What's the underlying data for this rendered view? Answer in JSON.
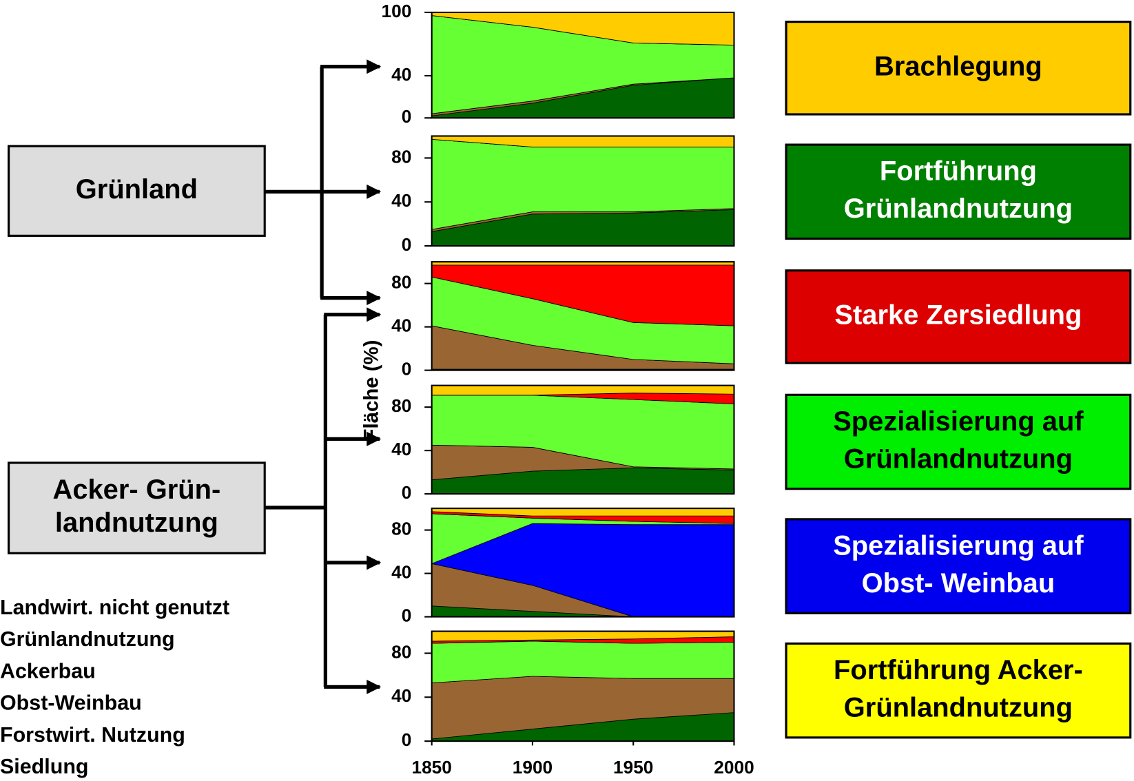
{
  "y_axis_label": "Fläche (%)",
  "sources": [
    {
      "lines": [
        "Grünland"
      ]
    },
    {
      "lines": [
        "Acker- Grün-",
        "landnutzung"
      ]
    }
  ],
  "scenarios": [
    {
      "lines": [
        "Brachlegung"
      ],
      "color": "#ffcc00",
      "text_color": "#000000"
    },
    {
      "lines": [
        "Fortführung",
        "Grünlandnutzung"
      ],
      "color": "#008000",
      "text_color": "#ffffff"
    },
    {
      "lines": [
        "Starke Zersiedlung"
      ],
      "color": "#dd0000",
      "text_color": "#ffffff"
    },
    {
      "lines": [
        "Spezialisierung auf",
        "Grünlandnutzung"
      ],
      "color": "#00ee00",
      "text_color": "#000000"
    },
    {
      "lines": [
        "Spezialisierung auf",
        "Obst- Weinbau"
      ],
      "color": "#0000ee",
      "text_color": "#ffffff"
    },
    {
      "lines": [
        "Fortführung Acker-",
        "Grünlandnutzung"
      ],
      "color": "#ffff00",
      "text_color": "#000000"
    }
  ],
  "chart_data": [
    {
      "type": "area",
      "stacked": true,
      "x": [
        1850,
        1900,
        1950,
        2000
      ],
      "xlim": [
        1850,
        2000
      ],
      "ylim": [
        0,
        100
      ],
      "yticks": [
        0,
        40,
        100
      ],
      "series": [
        {
          "name": "Forstwirt. Nutzung",
          "color": "#006400",
          "values": [
            2,
            14,
            31,
            38
          ]
        },
        {
          "name": "Ackerbau",
          "color": "#996633",
          "values": [
            2,
            2,
            1,
            0
          ]
        },
        {
          "name": "Obst-Weinbau",
          "color": "#0000ff",
          "values": [
            0,
            0,
            0,
            0
          ]
        },
        {
          "name": "Grünlandnutzung",
          "color": "#66ff33",
          "values": [
            93,
            70,
            39,
            31
          ]
        },
        {
          "name": "Siedlung",
          "color": "#ff0000",
          "values": [
            0,
            0,
            0,
            0
          ]
        },
        {
          "name": "Landwirt. nicht genutzt",
          "color": "#ffcc00",
          "values": [
            3,
            14,
            29,
            31
          ]
        }
      ]
    },
    {
      "type": "area",
      "stacked": true,
      "x": [
        1850,
        1900,
        1950,
        2000
      ],
      "xlim": [
        1850,
        2000
      ],
      "ylim": [
        0,
        100
      ],
      "yticks": [
        0,
        40,
        80
      ],
      "series": [
        {
          "name": "Forstwirt. Nutzung",
          "color": "#006400",
          "values": [
            13,
            29,
            30,
            33
          ]
        },
        {
          "name": "Ackerbau",
          "color": "#996633",
          "values": [
            2,
            2,
            1,
            1
          ]
        },
        {
          "name": "Obst-Weinbau",
          "color": "#0000ff",
          "values": [
            0,
            0,
            0,
            0
          ]
        },
        {
          "name": "Grünlandnutzung",
          "color": "#66ff33",
          "values": [
            82,
            59,
            59,
            56
          ]
        },
        {
          "name": "Siedlung",
          "color": "#ff0000",
          "values": [
            0,
            0,
            0,
            0
          ]
        },
        {
          "name": "Landwirt. nicht genutzt",
          "color": "#ffcc00",
          "values": [
            3,
            10,
            10,
            10
          ]
        }
      ]
    },
    {
      "type": "area",
      "stacked": true,
      "x": [
        1850,
        1900,
        1950,
        2000
      ],
      "xlim": [
        1850,
        2000
      ],
      "ylim": [
        0,
        100
      ],
      "yticks": [
        0,
        40,
        80
      ],
      "series": [
        {
          "name": "Forstwirt. Nutzung",
          "color": "#006400",
          "values": [
            1,
            1,
            1,
            1
          ]
        },
        {
          "name": "Ackerbau",
          "color": "#996633",
          "values": [
            40,
            22,
            9,
            5
          ]
        },
        {
          "name": "Obst-Weinbau",
          "color": "#0000ff",
          "values": [
            0,
            0,
            0,
            0
          ]
        },
        {
          "name": "Grünlandnutzung",
          "color": "#66ff33",
          "values": [
            45,
            43,
            34,
            35
          ]
        },
        {
          "name": "Siedlung",
          "color": "#ff0000",
          "values": [
            11,
            31,
            53,
            56
          ]
        },
        {
          "name": "Landwirt. nicht genutzt",
          "color": "#ffcc00",
          "values": [
            3,
            3,
            3,
            3
          ]
        }
      ]
    },
    {
      "type": "area",
      "stacked": true,
      "x": [
        1850,
        1900,
        1950,
        2000
      ],
      "xlim": [
        1850,
        2000
      ],
      "ylim": [
        0,
        100
      ],
      "yticks": [
        0,
        40,
        80
      ],
      "series": [
        {
          "name": "Forstwirt. Nutzung",
          "color": "#006400",
          "values": [
            13,
            21,
            24,
            22
          ]
        },
        {
          "name": "Ackerbau",
          "color": "#996633",
          "values": [
            32,
            22,
            1,
            1
          ]
        },
        {
          "name": "Obst-Weinbau",
          "color": "#0000ff",
          "values": [
            0,
            0,
            0,
            0
          ]
        },
        {
          "name": "Grünlandnutzung",
          "color": "#66ff33",
          "values": [
            46,
            48,
            62,
            60
          ]
        },
        {
          "name": "Siedlung",
          "color": "#ff0000",
          "values": [
            0,
            0,
            6,
            9
          ]
        },
        {
          "name": "Landwirt. nicht genutzt",
          "color": "#ffcc00",
          "values": [
            9,
            9,
            7,
            8
          ]
        }
      ]
    },
    {
      "type": "area",
      "stacked": true,
      "x": [
        1850,
        1900,
        1950,
        2000
      ],
      "xlim": [
        1850,
        2000
      ],
      "ylim": [
        0,
        100
      ],
      "yticks": [
        0,
        40,
        80
      ],
      "series": [
        {
          "name": "Forstwirt. Nutzung",
          "color": "#006400",
          "values": [
            10,
            5,
            0,
            0
          ]
        },
        {
          "name": "Ackerbau",
          "color": "#996633",
          "values": [
            39,
            24,
            0,
            0
          ]
        },
        {
          "name": "Obst-Weinbau",
          "color": "#0000ff",
          "values": [
            0,
            57,
            85,
            85
          ]
        },
        {
          "name": "Grünlandnutzung",
          "color": "#66ff33",
          "values": [
            46,
            5,
            3,
            1
          ]
        },
        {
          "name": "Siedlung",
          "color": "#ff0000",
          "values": [
            2,
            2,
            5,
            7
          ]
        },
        {
          "name": "Landwirt. nicht genutzt",
          "color": "#ffcc00",
          "values": [
            3,
            7,
            7,
            7
          ]
        }
      ]
    },
    {
      "type": "area",
      "stacked": true,
      "x": [
        1850,
        1900,
        1950,
        2000
      ],
      "xlim": [
        1850,
        2000
      ],
      "ylim": [
        0,
        100
      ],
      "yticks": [
        0,
        40,
        80
      ],
      "xticks": [
        1850,
        1900,
        1950,
        2000
      ],
      "series": [
        {
          "name": "Forstwirt. Nutzung",
          "color": "#006400",
          "values": [
            2,
            11,
            20,
            26
          ]
        },
        {
          "name": "Ackerbau",
          "color": "#996633",
          "values": [
            51,
            48,
            37,
            31
          ]
        },
        {
          "name": "Obst-Weinbau",
          "color": "#0000ff",
          "values": [
            0,
            0,
            0,
            0
          ]
        },
        {
          "name": "Grünlandnutzung",
          "color": "#66ff33",
          "values": [
            36,
            32,
            32,
            33
          ]
        },
        {
          "name": "Siedlung",
          "color": "#ff0000",
          "values": [
            2,
            1,
            4,
            5
          ]
        },
        {
          "name": "Landwirt. nicht genutzt",
          "color": "#ffcc00",
          "values": [
            9,
            8,
            7,
            5
          ]
        }
      ]
    }
  ]
}
